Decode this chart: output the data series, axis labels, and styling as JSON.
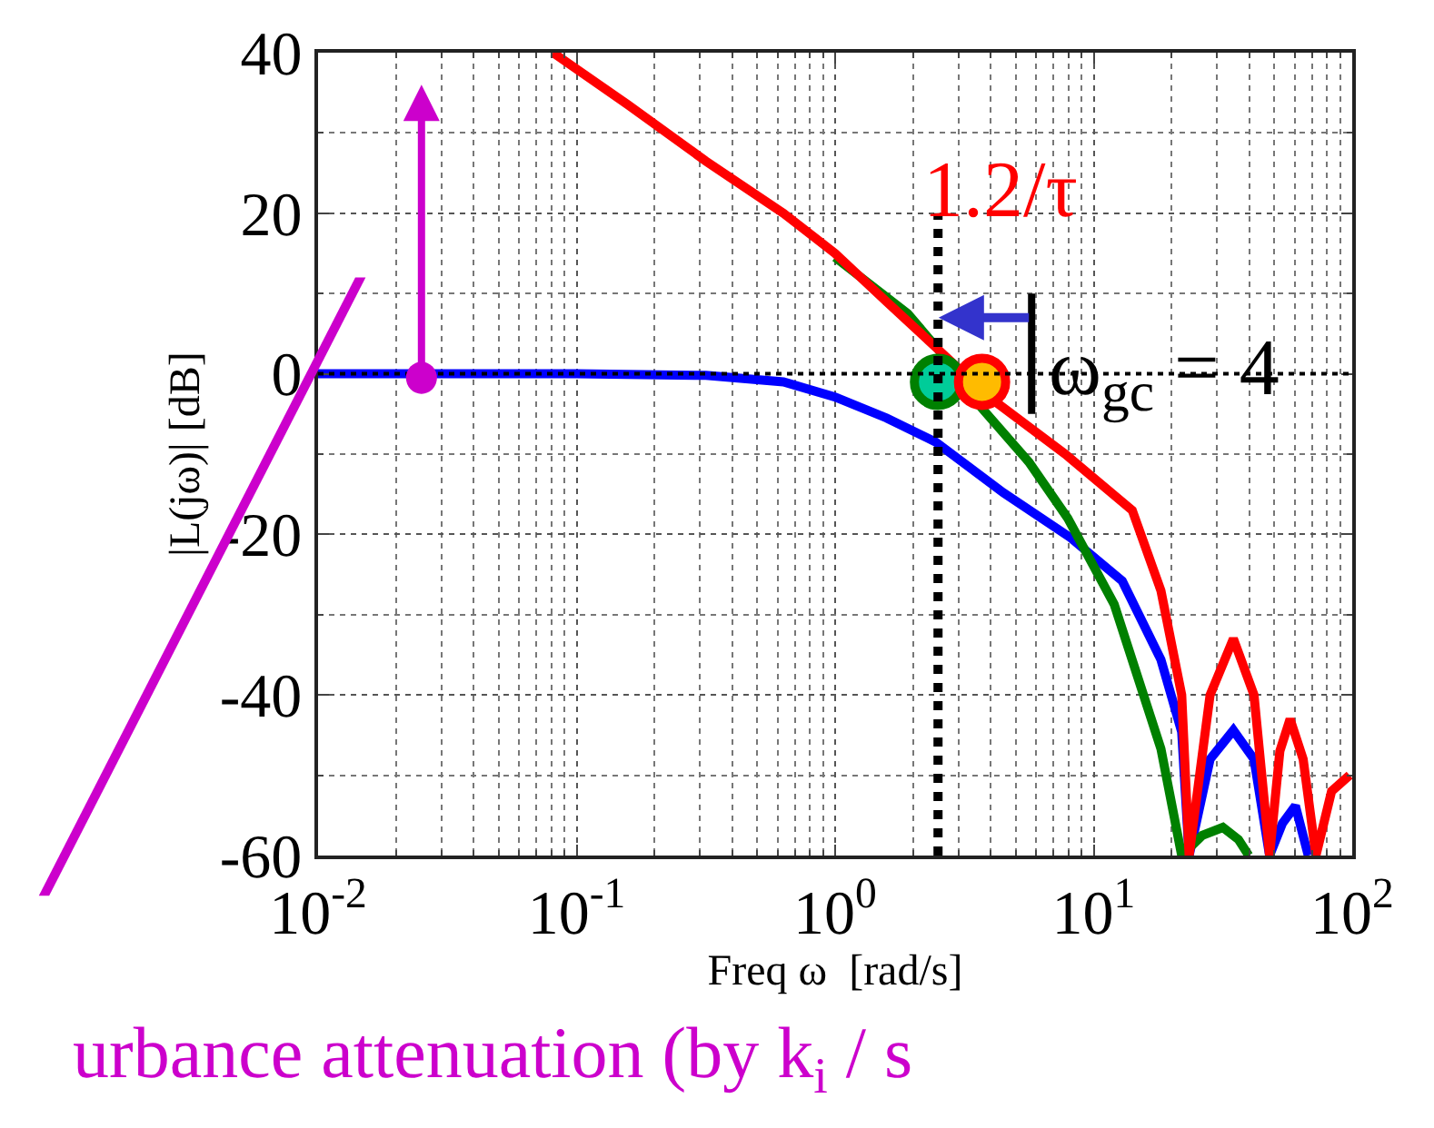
{
  "chart_data": {
    "type": "line",
    "xlabel": "Freq ω  [rad/s]",
    "ylabel": "|L(jω)| [dB]",
    "log": "x",
    "grid": true,
    "marker": "none",
    "line_style": "solid",
    "xlim": [
      0.01,
      100
    ],
    "xticks": [
      {
        "value": 0.01,
        "label": "10$^{-2}$"
      },
      {
        "value": 0.1,
        "label": "10$^{-1}$"
      },
      {
        "value": 1,
        "label": "10$^{0}$"
      },
      {
        "value": 10,
        "label": "10$^{1}$"
      },
      {
        "value": 100,
        "label": "10$^{2}$"
      }
    ],
    "ylim": [
      -60,
      40
    ],
    "yticks": [
      -60,
      -40,
      -20,
      0,
      20,
      40
    ],
    "series": [
      {
        "color": "#0000ff",
        "x": [
          0.01,
          0.1,
          0.316,
          0.631,
          1,
          1.58,
          2.45,
          4.47,
          8.13,
          12.9,
          18.2,
          21.9,
          23.4,
          28.2,
          34.7,
          41.7,
          47.9,
          53.7,
          60.3,
          67.6
        ],
        "values": [
          0,
          0,
          -0.2,
          -1,
          -2.9,
          -5.5,
          -8.5,
          -14.8,
          -20.4,
          -25.8,
          -35.6,
          -44.6,
          -60,
          -48,
          -44.4,
          -48,
          -60,
          -56,
          -53.8,
          -60
        ]
      },
      {
        "color": "#008000",
        "x": [
          1,
          1.91,
          2.51,
          3.63,
          5.62,
          7.94,
          12.0,
          18.2,
          21.9,
          26.3,
          31.6,
          36.3,
          39.8
        ],
        "values": [
          14.5,
          7.5,
          3,
          -4,
          -11,
          -18,
          -28.7,
          -46.7,
          -60,
          -57.5,
          -56.5,
          -58,
          -60
        ]
      },
      {
        "color": "#ff0000",
        "x": [
          0.081,
          0.158,
          0.316,
          0.631,
          1,
          1.58,
          2.51,
          3.98,
          7.76,
          14.1,
          18.2,
          21.9,
          23.4,
          28.2,
          34.7,
          41.7,
          47.9,
          52.5,
          57.5,
          64.6,
          72.4,
          83.2,
          97.7
        ],
        "values": [
          40,
          33.5,
          26.5,
          20,
          15,
          9,
          3,
          -3,
          -10,
          -17,
          -27,
          -40,
          -60,
          -40,
          -33,
          -40,
          -60,
          -47,
          -43,
          -48,
          -60,
          -52,
          -50
        ]
      },
      {
        "type": "scatter",
        "marker": "circle",
        "color": "#008000",
        "colors": [
          "#00cc99"
        ],
        "x": [
          2.5
        ],
        "values": [
          -1
        ]
      },
      {
        "type": "scatter",
        "marker": "circle",
        "color": "#ff0000",
        "colors": [
          "#ffbb00"
        ],
        "x": [
          3.7
        ],
        "values": [
          -1
        ]
      }
    ],
    "ref_lines": [
      {
        "axis": "x",
        "value": 2.5,
        "color": "#000000",
        "line_style": "dotted"
      },
      {
        "axis": "y",
        "value": 0,
        "color": "#000000",
        "line_style": "dotted"
      }
    ],
    "annotations": [
      "1.2/τ",
      {
        "text": "ω$_{gc}$ = 4",
        "x": 4,
        "y": 0
      },
      "urbance attenuation (by k$_{i}$ / s"
    ]
  }
}
